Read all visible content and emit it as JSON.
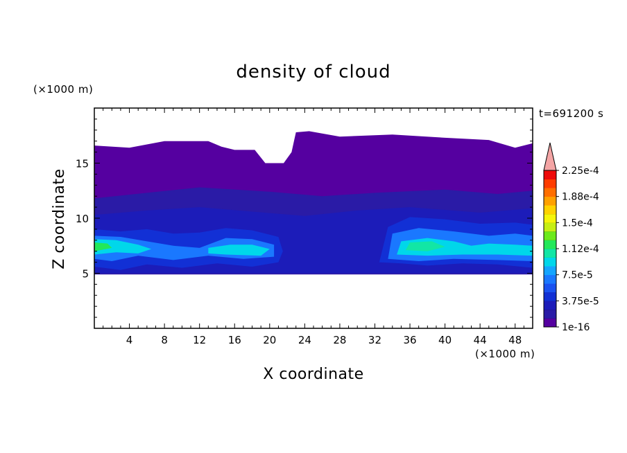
{
  "chart_data": {
    "type": "heatmap",
    "title": "density of cloud",
    "xlabel": "X coordinate",
    "ylabel": "Z coordinate",
    "x_unit": "(×1000 m)",
    "y_unit": "(×1000 m)",
    "time_label": "t=691200 s",
    "xlim": [
      0,
      50
    ],
    "ylim": [
      0,
      20
    ],
    "x_ticks": [
      4,
      8,
      12,
      16,
      20,
      24,
      28,
      32,
      36,
      40,
      44,
      48
    ],
    "y_ticks": [
      5,
      10,
      15
    ],
    "colorbar": {
      "colors": [
        "#5500a0",
        "#2a1ba6",
        "#1c1cb9",
        "#1230d5",
        "#1a52f0",
        "#1a78ff",
        "#14a5ff",
        "#00d7ea",
        "#12e6a5",
        "#22e85a",
        "#6cea1a",
        "#c6ef14",
        "#f5f50a",
        "#ffd200",
        "#ffa000",
        "#ff6e00",
        "#ff3c00",
        "#ee0a0a"
      ],
      "labels": [
        "1e-16",
        "3.75e-5",
        "7.5e-5",
        "1.12e-4",
        "1.5e-4",
        "1.88e-4",
        "2.25e-4"
      ],
      "extend_color": "#f4a5a5"
    },
    "regions": [
      {
        "name": "cloud-top-layer",
        "level": 0,
        "points": [
          [
            0,
            4.9
          ],
          [
            50,
            4.9
          ],
          [
            50,
            16.8
          ],
          [
            48,
            16.4
          ],
          [
            45,
            17.1
          ],
          [
            40,
            17.3
          ],
          [
            34,
            17.6
          ],
          [
            28,
            17.4
          ],
          [
            24.5,
            17.9
          ],
          [
            23,
            17.8
          ],
          [
            22.8,
            17.1
          ],
          [
            22.5,
            16.0
          ],
          [
            21.6,
            15.0
          ],
          [
            19.5,
            15.0
          ],
          [
            18.3,
            16.2
          ],
          [
            16,
            16.2
          ],
          [
            14.5,
            16.5
          ],
          [
            13,
            17.0
          ],
          [
            8,
            17.0
          ],
          [
            4,
            16.4
          ],
          [
            0,
            16.6
          ]
        ]
      },
      {
        "name": "upper-deck",
        "level": 1,
        "points": [
          [
            0,
            11.8
          ],
          [
            6,
            12.3
          ],
          [
            12,
            12.8
          ],
          [
            20,
            12.4
          ],
          [
            26,
            12.0
          ],
          [
            32,
            12.3
          ],
          [
            40,
            12.6
          ],
          [
            46,
            12.2
          ],
          [
            50,
            12.5
          ],
          [
            50,
            4.9
          ],
          [
            0,
            4.9
          ]
        ]
      },
      {
        "name": "mid-deck",
        "level": 2,
        "points": [
          [
            0,
            10.3
          ],
          [
            6,
            10.7
          ],
          [
            12,
            11.0
          ],
          [
            18,
            10.6
          ],
          [
            24,
            10.2
          ],
          [
            30,
            10.7
          ],
          [
            36,
            11.0
          ],
          [
            44,
            10.5
          ],
          [
            50,
            10.9
          ],
          [
            50,
            5.0
          ],
          [
            0,
            5.0
          ]
        ]
      },
      {
        "name": "left-cloud-outer",
        "level": 3,
        "points": [
          [
            0,
            9.0
          ],
          [
            3,
            8.8
          ],
          [
            6,
            9.0
          ],
          [
            9,
            8.6
          ],
          [
            12,
            8.7
          ],
          [
            15,
            9.1
          ],
          [
            18,
            8.9
          ],
          [
            21,
            8.3
          ],
          [
            21.5,
            7.0
          ],
          [
            21,
            6.0
          ],
          [
            18,
            5.6
          ],
          [
            14,
            5.9
          ],
          [
            10,
            5.5
          ],
          [
            6,
            5.8
          ],
          [
            3,
            5.3
          ],
          [
            0,
            5.6
          ]
        ]
      },
      {
        "name": "left-cloud-mid",
        "level": 5,
        "points": [
          [
            0,
            8.4
          ],
          [
            3,
            8.3
          ],
          [
            6,
            7.9
          ],
          [
            9,
            7.5
          ],
          [
            12,
            7.3
          ],
          [
            15,
            8.2
          ],
          [
            18,
            8.1
          ],
          [
            20.5,
            7.6
          ],
          [
            20.5,
            6.5
          ],
          [
            17,
            6.3
          ],
          [
            13,
            6.6
          ],
          [
            9,
            6.2
          ],
          [
            5,
            6.6
          ],
          [
            2,
            6.1
          ],
          [
            0,
            6.3
          ]
        ]
      },
      {
        "name": "left-cloud-core",
        "level": 7,
        "points": [
          [
            0,
            8.1
          ],
          [
            2.5,
            8.0
          ],
          [
            5,
            7.6
          ],
          [
            6.5,
            7.2
          ],
          [
            5,
            6.8
          ],
          [
            2.5,
            6.9
          ],
          [
            0,
            6.7
          ]
        ]
      },
      {
        "name": "left-cloud-peak",
        "level": 9,
        "points": [
          [
            0,
            7.8
          ],
          [
            1.5,
            7.7
          ],
          [
            2,
            7.3
          ],
          [
            0,
            7.0
          ]
        ]
      },
      {
        "name": "mid-cloud-core",
        "level": 7,
        "points": [
          [
            13,
            7.3
          ],
          [
            15.5,
            7.6
          ],
          [
            18,
            7.6
          ],
          [
            20,
            7.2
          ],
          [
            19,
            6.6
          ],
          [
            15,
            6.7
          ],
          [
            13,
            6.8
          ]
        ]
      },
      {
        "name": "right-cloud-outer",
        "level": 3,
        "points": [
          [
            32.5,
            6.0
          ],
          [
            33.5,
            9.2
          ],
          [
            36,
            10.1
          ],
          [
            40,
            9.9
          ],
          [
            44,
            9.5
          ],
          [
            48,
            9.6
          ],
          [
            50,
            9.4
          ],
          [
            50,
            5.5
          ],
          [
            46,
            5.8
          ],
          [
            42,
            5.9
          ],
          [
            38,
            5.7
          ],
          [
            35,
            5.9
          ]
        ]
      },
      {
        "name": "right-cloud-mid",
        "level": 5,
        "points": [
          [
            33.5,
            6.3
          ],
          [
            34,
            8.6
          ],
          [
            37,
            9.1
          ],
          [
            41,
            8.8
          ],
          [
            45,
            8.4
          ],
          [
            48,
            8.6
          ],
          [
            50,
            8.4
          ],
          [
            50,
            6.1
          ],
          [
            46,
            6.2
          ],
          [
            41,
            6.3
          ],
          [
            37,
            6.1
          ]
        ]
      },
      {
        "name": "right-cloud-core",
        "level": 7,
        "points": [
          [
            34.5,
            6.7
          ],
          [
            35,
            7.9
          ],
          [
            38,
            8.2
          ],
          [
            41,
            7.9
          ],
          [
            43,
            7.5
          ],
          [
            45,
            7.7
          ],
          [
            48,
            7.6
          ],
          [
            50,
            7.5
          ],
          [
            50,
            6.6
          ],
          [
            46,
            6.7
          ],
          [
            42,
            6.7
          ],
          [
            38,
            6.6
          ]
        ]
      },
      {
        "name": "right-cloud-peak",
        "level": 8,
        "points": [
          [
            35.5,
            7.1
          ],
          [
            36,
            7.8
          ],
          [
            38.5,
            7.9
          ],
          [
            40,
            7.4
          ],
          [
            38,
            7.0
          ]
        ]
      }
    ]
  }
}
